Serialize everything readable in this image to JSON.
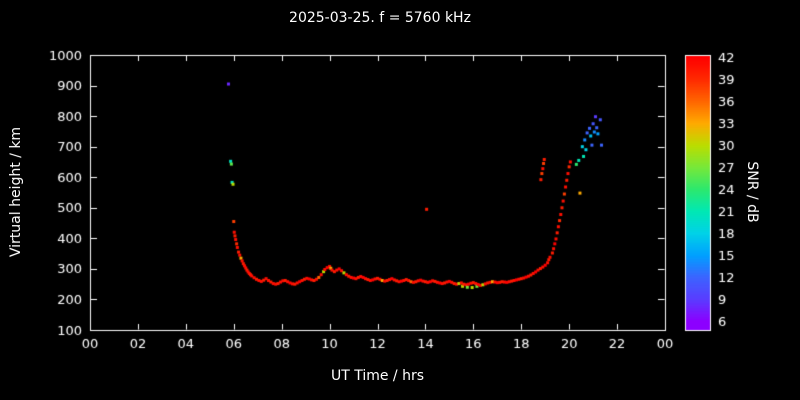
{
  "title": "2025-03-25. f = 5760 kHz",
  "chart_data": {
    "type": "scatter",
    "title": "2025-03-25. f = 5760 kHz",
    "xlabel": "UT Time / hrs",
    "ylabel": "Virtual height / km",
    "colorbar_label": "SNR / dB",
    "xlim": [
      0,
      24
    ],
    "ylim": [
      100,
      1000
    ],
    "background": "#000000",
    "frame_color": "#ffffff",
    "text_color": "#ffffff",
    "x_ticks": {
      "values": [
        0,
        2,
        4,
        6,
        8,
        10,
        12,
        14,
        16,
        18,
        20,
        22,
        24
      ],
      "labels": [
        "00",
        "02",
        "04",
        "06",
        "08",
        "10",
        "12",
        "14",
        "16",
        "18",
        "20",
        "22",
        "00"
      ]
    },
    "y_ticks": {
      "values": [
        100,
        200,
        300,
        400,
        500,
        600,
        700,
        800,
        900,
        1000
      ],
      "labels": [
        "100",
        "200",
        "300",
        "400",
        "500",
        "600",
        "700",
        "800",
        "900",
        "1000"
      ]
    },
    "colorbar": {
      "min": 6,
      "max": 42,
      "ticks": [
        6,
        9,
        12,
        15,
        18,
        21,
        24,
        27,
        30,
        33,
        36,
        39,
        42
      ],
      "stops": [
        [
          6,
          "#8c00ff"
        ],
        [
          9,
          "#5a3cff"
        ],
        [
          12,
          "#3c64ff"
        ],
        [
          15,
          "#00a0ff"
        ],
        [
          18,
          "#00d2e8"
        ],
        [
          21,
          "#00e8b4"
        ],
        [
          24,
          "#2ce86e"
        ],
        [
          27,
          "#77e83a"
        ],
        [
          30,
          "#bbdd00"
        ],
        [
          33,
          "#ffaa00"
        ],
        [
          36,
          "#ff6600"
        ],
        [
          39,
          "#ff2a00"
        ],
        [
          42,
          "#ff0000"
        ]
      ]
    },
    "points": [
      [
        5.78,
        905,
        8
      ],
      [
        5.87,
        652,
        20
      ],
      [
        5.9,
        643,
        26
      ],
      [
        5.93,
        583,
        20
      ],
      [
        5.97,
        577,
        30
      ],
      [
        6.0,
        455,
        38
      ],
      [
        6.02,
        420,
        41
      ],
      [
        6.05,
        408,
        40
      ],
      [
        6.08,
        396,
        41
      ],
      [
        6.12,
        382,
        39
      ],
      [
        6.15,
        370,
        41
      ],
      [
        6.2,
        355,
        40
      ],
      [
        6.25,
        345,
        41
      ],
      [
        6.3,
        335,
        33
      ],
      [
        6.35,
        326,
        41
      ],
      [
        6.4,
        317,
        40
      ],
      [
        6.45,
        310,
        41
      ],
      [
        6.5,
        303,
        41
      ],
      [
        6.55,
        296,
        40
      ],
      [
        6.6,
        290,
        41
      ],
      [
        6.65,
        285,
        41
      ],
      [
        6.7,
        281,
        40
      ],
      [
        6.75,
        277,
        41
      ],
      [
        6.85,
        271,
        41
      ],
      [
        6.95,
        266,
        40
      ],
      [
        7.05,
        262,
        41
      ],
      [
        7.15,
        259,
        41
      ],
      [
        7.25,
        263,
        40
      ],
      [
        7.35,
        268,
        41
      ],
      [
        7.45,
        262,
        41
      ],
      [
        7.55,
        257,
        40
      ],
      [
        7.65,
        252,
        41
      ],
      [
        7.75,
        250,
        41
      ],
      [
        7.85,
        252,
        40
      ],
      [
        7.95,
        257,
        41
      ],
      [
        8.05,
        261,
        41
      ],
      [
        8.15,
        262,
        40
      ],
      [
        8.25,
        258,
        41
      ],
      [
        8.35,
        254,
        42
      ],
      [
        8.45,
        251,
        41
      ],
      [
        8.55,
        250,
        40
      ],
      [
        8.65,
        254,
        41
      ],
      [
        8.75,
        258,
        42
      ],
      [
        8.85,
        262,
        41
      ],
      [
        8.95,
        266,
        40
      ],
      [
        9.05,
        269,
        41
      ],
      [
        9.15,
        267,
        42
      ],
      [
        9.25,
        264,
        41
      ],
      [
        9.35,
        262,
        40
      ],
      [
        9.45,
        266,
        41
      ],
      [
        9.55,
        272,
        36
      ],
      [
        9.65,
        281,
        41
      ],
      [
        9.75,
        291,
        30
      ],
      [
        9.8,
        298,
        41
      ],
      [
        9.9,
        304,
        42
      ],
      [
        10.0,
        308,
        41
      ],
      [
        10.05,
        302,
        33
      ],
      [
        10.1,
        296,
        41
      ],
      [
        10.2,
        291,
        40
      ],
      [
        10.3,
        296,
        41
      ],
      [
        10.4,
        300,
        42
      ],
      [
        10.5,
        294,
        41
      ],
      [
        10.6,
        287,
        30
      ],
      [
        10.7,
        281,
        41
      ],
      [
        10.8,
        276,
        40
      ],
      [
        10.9,
        272,
        41
      ],
      [
        11.0,
        270,
        42
      ],
      [
        11.1,
        268,
        41
      ],
      [
        11.2,
        272,
        40
      ],
      [
        11.3,
        275,
        41
      ],
      [
        11.4,
        272,
        42
      ],
      [
        11.5,
        268,
        41
      ],
      [
        11.6,
        265,
        40
      ],
      [
        11.7,
        262,
        41
      ],
      [
        11.8,
        264,
        42
      ],
      [
        11.9,
        267,
        41
      ],
      [
        12.0,
        269,
        40
      ],
      [
        12.1,
        266,
        41
      ],
      [
        12.2,
        262,
        33
      ],
      [
        12.3,
        260,
        41
      ],
      [
        12.4,
        262,
        40
      ],
      [
        12.5,
        265,
        41
      ],
      [
        12.6,
        268,
        42
      ],
      [
        12.7,
        264,
        41
      ],
      [
        12.8,
        261,
        40
      ],
      [
        12.9,
        258,
        41
      ],
      [
        13.0,
        260,
        42
      ],
      [
        13.1,
        262,
        41
      ],
      [
        13.2,
        265,
        40
      ],
      [
        13.3,
        262,
        41
      ],
      [
        13.4,
        258,
        36
      ],
      [
        13.5,
        256,
        41
      ],
      [
        13.6,
        258,
        40
      ],
      [
        13.7,
        261,
        41
      ],
      [
        13.8,
        263,
        42
      ],
      [
        13.9,
        260,
        41
      ],
      [
        14.0,
        258,
        40
      ],
      [
        14.05,
        495,
        40
      ],
      [
        14.1,
        256,
        41
      ],
      [
        14.2,
        258,
        42
      ],
      [
        14.3,
        261,
        41
      ],
      [
        14.4,
        259,
        40
      ],
      [
        14.5,
        256,
        41
      ],
      [
        14.6,
        254,
        42
      ],
      [
        14.7,
        252,
        41
      ],
      [
        14.8,
        254,
        40
      ],
      [
        14.9,
        257,
        41
      ],
      [
        15.0,
        259,
        42
      ],
      [
        15.1,
        256,
        41
      ],
      [
        15.2,
        252,
        40
      ],
      [
        15.3,
        250,
        41
      ],
      [
        15.4,
        252,
        30
      ],
      [
        15.5,
        254,
        41
      ],
      [
        15.55,
        243,
        30
      ],
      [
        15.6,
        250,
        40
      ],
      [
        15.7,
        248,
        41
      ],
      [
        15.75,
        240,
        27
      ],
      [
        15.8,
        250,
        42
      ],
      [
        15.9,
        253,
        41
      ],
      [
        15.95,
        239,
        30
      ],
      [
        16.0,
        255,
        40
      ],
      [
        16.1,
        252,
        41
      ],
      [
        16.15,
        243,
        27
      ],
      [
        16.2,
        249,
        42
      ],
      [
        16.3,
        246,
        41
      ],
      [
        16.4,
        248,
        30
      ],
      [
        16.5,
        251,
        41
      ],
      [
        16.6,
        254,
        40
      ],
      [
        16.7,
        256,
        41
      ],
      [
        16.8,
        258,
        33
      ],
      [
        16.9,
        257,
        41
      ],
      [
        17.0,
        255,
        42
      ],
      [
        17.1,
        256,
        41
      ],
      [
        17.2,
        258,
        40
      ],
      [
        17.3,
        257,
        41
      ],
      [
        17.4,
        256,
        42
      ],
      [
        17.5,
        258,
        41
      ],
      [
        17.6,
        260,
        40
      ],
      [
        17.7,
        262,
        41
      ],
      [
        17.8,
        264,
        42
      ],
      [
        17.9,
        266,
        41
      ],
      [
        18.0,
        268,
        40
      ],
      [
        18.1,
        270,
        41
      ],
      [
        18.2,
        273,
        42
      ],
      [
        18.3,
        276,
        41
      ],
      [
        18.4,
        280,
        40
      ],
      [
        18.5,
        285,
        41
      ],
      [
        18.6,
        290,
        42
      ],
      [
        18.7,
        296,
        41
      ],
      [
        18.8,
        301,
        40
      ],
      [
        18.9,
        306,
        41
      ],
      [
        19.0,
        312,
        42
      ],
      [
        19.1,
        320,
        41
      ],
      [
        18.82,
        592,
        40
      ],
      [
        18.86,
        612,
        38
      ],
      [
        18.9,
        628,
        41
      ],
      [
        18.93,
        645,
        38
      ],
      [
        18.96,
        658,
        40
      ],
      [
        19.15,
        330,
        40
      ],
      [
        19.2,
        338,
        41
      ],
      [
        19.3,
        352,
        40
      ],
      [
        19.35,
        366,
        41
      ],
      [
        19.4,
        382,
        42
      ],
      [
        19.45,
        398,
        41
      ],
      [
        19.5,
        418,
        40
      ],
      [
        19.55,
        438,
        41
      ],
      [
        19.6,
        458,
        39
      ],
      [
        19.65,
        478,
        41
      ],
      [
        19.7,
        500,
        40
      ],
      [
        19.75,
        522,
        41
      ],
      [
        19.8,
        545,
        38
      ],
      [
        19.85,
        568,
        41
      ],
      [
        19.9,
        590,
        40
      ],
      [
        19.95,
        612,
        41
      ],
      [
        20.0,
        634,
        39
      ],
      [
        20.05,
        650,
        41
      ],
      [
        20.3,
        642,
        24
      ],
      [
        20.4,
        655,
        21
      ],
      [
        20.45,
        548,
        33
      ],
      [
        20.55,
        700,
        18
      ],
      [
        20.6,
        668,
        21
      ],
      [
        20.65,
        722,
        14
      ],
      [
        20.7,
        690,
        18
      ],
      [
        20.75,
        745,
        12
      ],
      [
        20.85,
        760,
        12
      ],
      [
        20.9,
        735,
        17
      ],
      [
        20.95,
        705,
        12
      ],
      [
        21.0,
        775,
        11
      ],
      [
        21.05,
        748,
        14
      ],
      [
        21.1,
        798,
        9
      ],
      [
        21.15,
        762,
        12
      ],
      [
        21.2,
        742,
        15
      ],
      [
        21.3,
        788,
        11
      ],
      [
        21.35,
        705,
        12
      ]
    ]
  }
}
